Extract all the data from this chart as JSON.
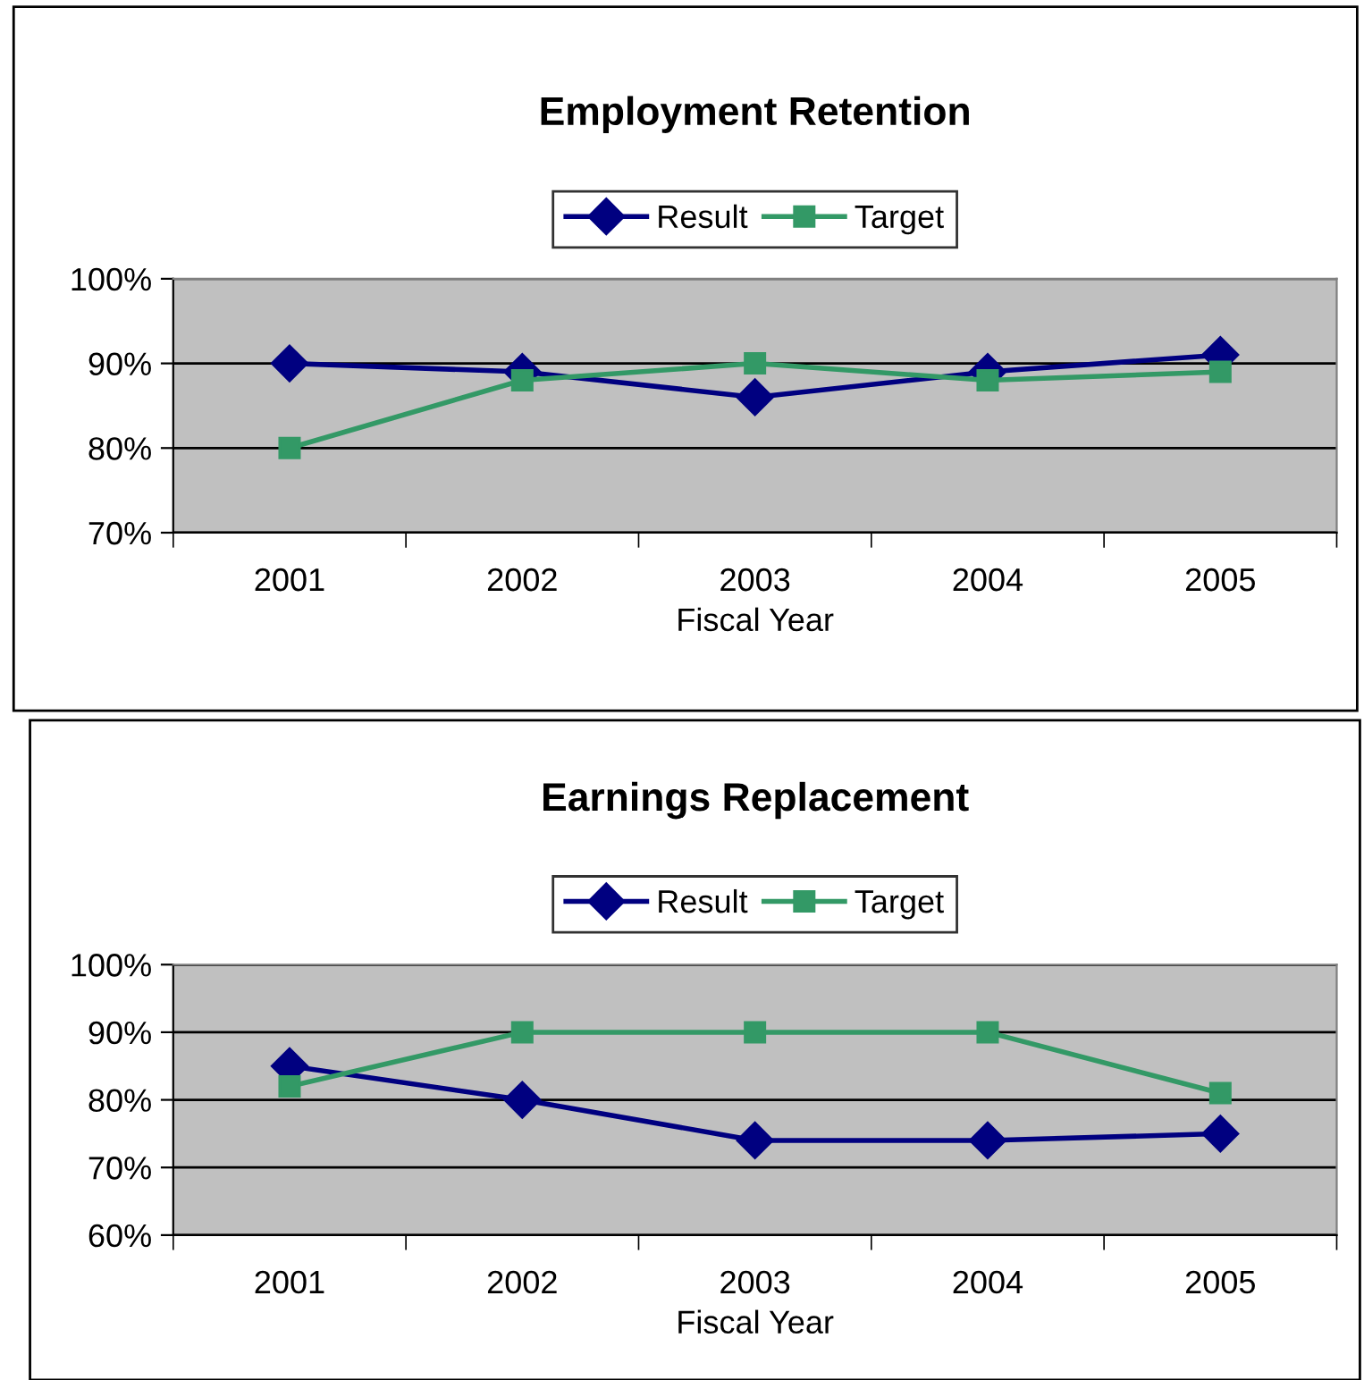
{
  "chart_data": [
    {
      "type": "line",
      "title": "Employment Retention",
      "xlabel": "Fiscal Year",
      "categories": [
        "2001",
        "2002",
        "2003",
        "2004",
        "2005"
      ],
      "series": [
        {
          "name": "Result",
          "color": "#000080",
          "marker": "diamond",
          "values": [
            90,
            89,
            86,
            89,
            91
          ]
        },
        {
          "name": "Target",
          "color": "#339966",
          "marker": "square",
          "values": [
            80,
            88,
            90,
            88,
            89
          ]
        }
      ],
      "ylim": [
        70,
        100
      ],
      "yticks": [
        {
          "value": 70,
          "label": "70%"
        },
        {
          "value": 80,
          "label": "80%"
        },
        {
          "value": 90,
          "label": "90%"
        },
        {
          "value": 100,
          "label": "100%"
        }
      ],
      "grid": "y",
      "legend": "top"
    },
    {
      "type": "line",
      "title": "Earnings Replacement",
      "xlabel": "Fiscal Year",
      "categories": [
        "2001",
        "2002",
        "2003",
        "2004",
        "2005"
      ],
      "series": [
        {
          "name": "Result",
          "color": "#000080",
          "marker": "diamond",
          "values": [
            85,
            80,
            74,
            74,
            75
          ]
        },
        {
          "name": "Target",
          "color": "#339966",
          "marker": "square",
          "values": [
            82,
            90,
            90,
            90,
            81
          ]
        }
      ],
      "ylim": [
        60,
        100
      ],
      "yticks": [
        {
          "value": 60,
          "label": "60%"
        },
        {
          "value": 70,
          "label": "70%"
        },
        {
          "value": 80,
          "label": "80%"
        },
        {
          "value": 90,
          "label": "90%"
        },
        {
          "value": 100,
          "label": "100%"
        }
      ],
      "grid": "y",
      "legend": "top"
    }
  ]
}
